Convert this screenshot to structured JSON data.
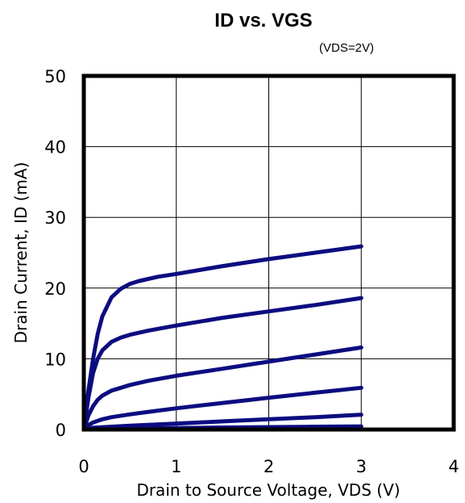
{
  "chart_data": {
    "type": "line",
    "title": "ID vs. VGS",
    "subtitle": "(VDS=2V)",
    "xlabel": "Drain to Source Voltage, VDS (V)",
    "ylabel": "Drain Current, ID (mA)",
    "xlim": [
      0,
      4
    ],
    "ylim": [
      0,
      50
    ],
    "xticks": [
      0,
      1,
      2,
      3,
      4
    ],
    "yticks": [
      0,
      10,
      20,
      30,
      40,
      50
    ],
    "grid": true,
    "line_color": "#0c0c80",
    "series": [
      {
        "x": [
          0,
          0.05,
          0.1,
          0.15,
          0.2,
          0.3,
          0.4,
          0.5,
          0.6,
          0.8,
          1.0,
          1.5,
          2.0,
          2.5,
          3.0
        ],
        "y": [
          0,
          5.5,
          10,
          13.5,
          16,
          18.7,
          19.9,
          20.6,
          21.0,
          21.6,
          22.0,
          23.1,
          24.1,
          25.0,
          25.9
        ]
      },
      {
        "x": [
          0,
          0.05,
          0.1,
          0.15,
          0.2,
          0.3,
          0.4,
          0.5,
          0.7,
          1.0,
          1.5,
          2.0,
          2.5,
          3.0
        ],
        "y": [
          0,
          4.5,
          8,
          10,
          11.2,
          12.4,
          13.0,
          13.4,
          14.0,
          14.7,
          15.8,
          16.7,
          17.6,
          18.6
        ]
      },
      {
        "x": [
          0,
          0.05,
          0.1,
          0.15,
          0.2,
          0.3,
          0.5,
          0.7,
          1.0,
          1.5,
          2.0,
          2.5,
          3.0
        ],
        "y": [
          0,
          2,
          3.3,
          4.2,
          4.8,
          5.5,
          6.3,
          6.9,
          7.6,
          8.6,
          9.6,
          10.6,
          11.6
        ]
      },
      {
        "x": [
          0,
          0.05,
          0.1,
          0.2,
          0.3,
          0.5,
          0.7,
          1.0,
          1.5,
          2.0,
          2.5,
          3.0
        ],
        "y": [
          0,
          0.6,
          1.0,
          1.45,
          1.75,
          2.15,
          2.5,
          3.0,
          3.75,
          4.5,
          5.2,
          5.9
        ]
      },
      {
        "x": [
          0,
          0.1,
          0.3,
          0.5,
          1.0,
          1.5,
          2.0,
          2.5,
          3.0
        ],
        "y": [
          0,
          0.25,
          0.4,
          0.55,
          0.85,
          1.15,
          1.45,
          1.75,
          2.1
        ]
      },
      {
        "x": [
          0,
          0.5,
          1.0,
          1.5,
          2.0,
          2.5,
          3.0
        ],
        "y": [
          0,
          0.15,
          0.22,
          0.28,
          0.34,
          0.4,
          0.45
        ]
      }
    ]
  }
}
